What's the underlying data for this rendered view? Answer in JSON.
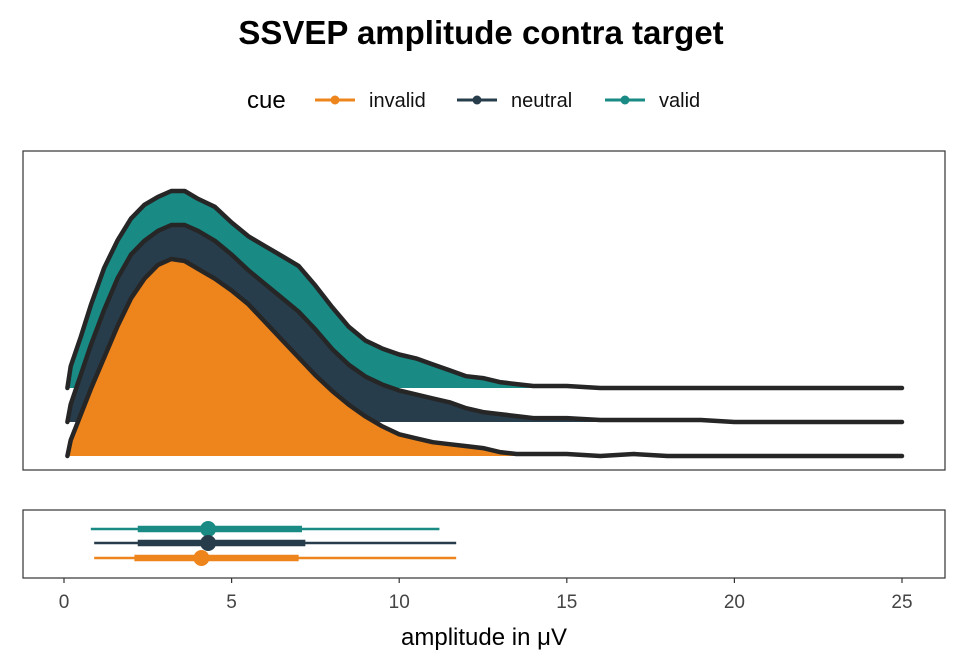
{
  "chart_data": {
    "type": "area",
    "title": "SSVEP amplitude contra target",
    "xlabel": "amplitude in μV",
    "xlim": [
      0,
      25
    ],
    "x_ticks": [
      0,
      5,
      10,
      15,
      20,
      25
    ],
    "x_tick_labels": [
      "0",
      "5",
      "10",
      "15",
      "20",
      "25"
    ],
    "legend": {
      "title": "cue",
      "placement": "top",
      "entries": [
        "invalid",
        "neutral",
        "valid"
      ]
    },
    "colors": {
      "invalid": "#EE841C",
      "neutral": "#283D4C",
      "valid": "#1A8A84",
      "outline": "#262626"
    },
    "series": [
      {
        "name": "invalid",
        "density_x": [
          0.1,
          0.2,
          0.5,
          0.8,
          1.2,
          1.6,
          2.0,
          2.4,
          2.8,
          3.2,
          3.6,
          4.0,
          4.5,
          5.0,
          5.5,
          6.0,
          6.5,
          7.0,
          7.5,
          8.0,
          8.5,
          9.0,
          9.5,
          10.0,
          10.5,
          11.0,
          11.5,
          12.0,
          12.5,
          13.0,
          13.5,
          14.0,
          15.0,
          16.0,
          17.0,
          18.0,
          19.0,
          20.0,
          21.0,
          22.0,
          23.0,
          24.0,
          25.0
        ],
        "density_y": [
          0.0,
          0.08,
          0.21,
          0.34,
          0.5,
          0.66,
          0.8,
          0.9,
          0.97,
          1.0,
          0.99,
          0.95,
          0.9,
          0.84,
          0.77,
          0.68,
          0.59,
          0.5,
          0.41,
          0.33,
          0.26,
          0.2,
          0.15,
          0.11,
          0.09,
          0.07,
          0.06,
          0.05,
          0.04,
          0.02,
          0.01,
          0.01,
          0.01,
          0.0,
          0.01,
          0.0,
          0.0,
          0.0,
          0.0,
          0.0,
          0.0,
          0.0,
          0.0
        ],
        "median": 4.1,
        "interval_66": [
          2.1,
          7.0
        ],
        "interval_95": [
          0.9,
          11.7
        ]
      },
      {
        "name": "neutral",
        "density_x": [
          0.1,
          0.2,
          0.5,
          0.8,
          1.2,
          1.6,
          2.0,
          2.4,
          2.8,
          3.2,
          3.6,
          4.0,
          4.5,
          5.0,
          5.5,
          6.0,
          6.5,
          7.0,
          7.5,
          8.0,
          8.5,
          9.0,
          9.5,
          10.0,
          10.5,
          11.0,
          11.5,
          12.0,
          12.5,
          13.0,
          13.5,
          14.0,
          15.0,
          16.0,
          17.0,
          18.0,
          19.0,
          20.0,
          21.0,
          22.0,
          23.0,
          24.0,
          25.0
        ],
        "density_y": [
          0.0,
          0.09,
          0.24,
          0.39,
          0.57,
          0.73,
          0.85,
          0.92,
          0.97,
          1.0,
          1.0,
          0.97,
          0.92,
          0.85,
          0.77,
          0.7,
          0.63,
          0.56,
          0.47,
          0.37,
          0.29,
          0.23,
          0.19,
          0.16,
          0.14,
          0.12,
          0.1,
          0.07,
          0.05,
          0.04,
          0.03,
          0.02,
          0.02,
          0.01,
          0.01,
          0.01,
          0.01,
          0.0,
          0.0,
          0.0,
          0.0,
          0.0,
          0.0
        ],
        "median": 4.3,
        "interval_66": [
          2.2,
          7.2
        ],
        "interval_95": [
          0.9,
          11.7
        ]
      },
      {
        "name": "valid",
        "density_x": [
          0.1,
          0.2,
          0.5,
          0.8,
          1.2,
          1.6,
          2.0,
          2.4,
          2.8,
          3.2,
          3.6,
          4.0,
          4.5,
          5.0,
          5.5,
          6.0,
          6.5,
          7.0,
          7.5,
          8.0,
          8.5,
          9.0,
          9.5,
          10.0,
          10.5,
          11.0,
          11.5,
          12.0,
          12.5,
          13.0,
          13.5,
          14.0,
          15.0,
          16.0,
          17.0,
          18.0,
          19.0,
          20.0,
          21.0,
          22.0,
          23.0,
          24.0,
          25.0
        ],
        "density_y": [
          0.0,
          0.11,
          0.26,
          0.42,
          0.61,
          0.75,
          0.86,
          0.93,
          0.97,
          1.0,
          1.0,
          0.96,
          0.92,
          0.84,
          0.77,
          0.72,
          0.67,
          0.62,
          0.52,
          0.41,
          0.31,
          0.24,
          0.2,
          0.17,
          0.15,
          0.12,
          0.09,
          0.06,
          0.05,
          0.03,
          0.02,
          0.01,
          0.01,
          0.0,
          0.0,
          0.0,
          0.0,
          0.0,
          0.0,
          0.0,
          0.0,
          0.0,
          0.0
        ],
        "median": 4.3,
        "interval_66": [
          2.2,
          7.1
        ],
        "interval_95": [
          0.8,
          11.2
        ]
      }
    ]
  }
}
